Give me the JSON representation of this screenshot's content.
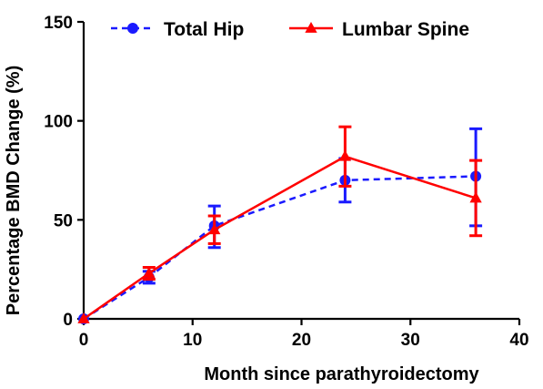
{
  "colors": {
    "total_hip": "#1a1aff",
    "lumbar_spine": "#ff0000",
    "axis": "#000000"
  },
  "chart_data": {
    "type": "line",
    "title": "",
    "xlabel": "Month since parathyroidectomy",
    "ylabel": "Percentage BMD Change (%)",
    "xlim": [
      0,
      40
    ],
    "ylim": [
      0,
      150
    ],
    "xticks": [
      0,
      10,
      20,
      30,
      40
    ],
    "yticks": [
      0,
      50,
      100,
      150
    ],
    "grid": false,
    "legend_position": "top",
    "series": [
      {
        "name": "Total Hip",
        "style": "dashed",
        "marker": "circle",
        "color": "#1a1aff",
        "x": [
          0,
          6,
          12,
          24,
          36
        ],
        "y": [
          0,
          21,
          47,
          70,
          72
        ],
        "err_low": [
          0,
          3,
          11,
          11,
          25
        ],
        "err_high": [
          0,
          3,
          10,
          11,
          24
        ]
      },
      {
        "name": "Lumbar Spine",
        "style": "solid",
        "marker": "triangle",
        "color": "#ff0000",
        "x": [
          0,
          6,
          12,
          24,
          36
        ],
        "y": [
          0,
          23,
          45,
          82,
          61
        ],
        "err_low": [
          0,
          3,
          7,
          15,
          19
        ],
        "err_high": [
          0,
          3,
          7,
          15,
          19
        ]
      }
    ]
  }
}
